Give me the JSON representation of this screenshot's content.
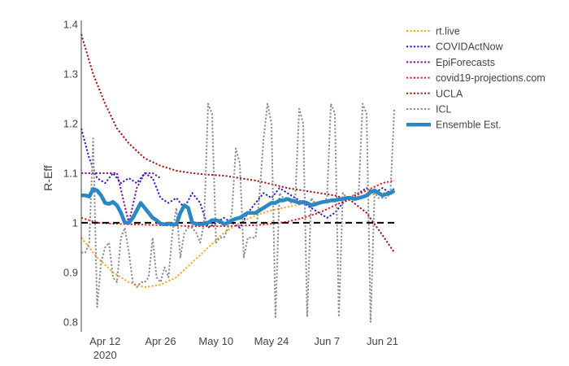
{
  "chart_data": {
    "type": "line",
    "ylabel": "R-Eff",
    "xlabel": "",
    "ylim": [
      0.78,
      1.4
    ],
    "xlim": [
      "2020-04-06",
      "2020-06-25"
    ],
    "yticks": [
      "0.8",
      "0.9",
      "1",
      "1.1",
      "1.2",
      "1.3",
      "1.4"
    ],
    "xticks": [
      {
        "date": "2020-04-12",
        "label": "Apr 12",
        "sublabel": "2020"
      },
      {
        "date": "2020-04-26",
        "label": "Apr 26",
        "sublabel": ""
      },
      {
        "date": "2020-05-10",
        "label": "May 10",
        "sublabel": ""
      },
      {
        "date": "2020-05-24",
        "label": "May 24",
        "sublabel": ""
      },
      {
        "date": "2020-06-07",
        "label": "Jun 7",
        "sublabel": ""
      },
      {
        "date": "2020-06-21",
        "label": "Jun 21",
        "sublabel": ""
      }
    ],
    "reference_line": {
      "y": 1.0,
      "style": "dashed",
      "color": "#000000"
    },
    "legend_position": "right",
    "grid": false,
    "series": [
      {
        "name": "rt.live",
        "color": "#f5a623",
        "style": "dotted",
        "x": [
          "2020-04-06",
          "2020-04-10",
          "2020-04-14",
          "2020-04-18",
          "2020-04-22",
          "2020-04-26",
          "2020-04-30",
          "2020-05-04",
          "2020-05-08",
          "2020-05-12",
          "2020-05-16",
          "2020-05-20",
          "2020-05-24",
          "2020-05-28",
          "2020-06-01",
          "2020-06-05",
          "2020-06-09",
          "2020-06-13",
          "2020-06-17",
          "2020-06-21",
          "2020-06-24"
        ],
        "y": [
          0.97,
          0.93,
          0.9,
          0.88,
          0.87,
          0.875,
          0.89,
          0.92,
          0.95,
          0.98,
          1.0,
          1.015,
          1.025,
          1.032,
          1.038,
          1.042,
          1.045,
          1.05,
          1.055,
          1.06,
          1.06
        ]
      },
      {
        "name": "COVIDActNow",
        "color": "#1f1fd1",
        "style": "dotted",
        "x": [
          "2020-04-06",
          "2020-04-08",
          "2020-04-10",
          "2020-04-12",
          "2020-04-14",
          "2020-04-16",
          "2020-04-18",
          "2020-04-20",
          "2020-04-22",
          "2020-04-24",
          "2020-04-26",
          "2020-04-28",
          "2020-04-30",
          "2020-05-02",
          "2020-05-04",
          "2020-05-06",
          "2020-05-08",
          "2020-05-10",
          "2020-05-12",
          "2020-05-14",
          "2020-05-16",
          "2020-05-18",
          "2020-05-20",
          "2020-05-22",
          "2020-05-24",
          "2020-05-26",
          "2020-05-28",
          "2020-05-30",
          "2020-06-01",
          "2020-06-03",
          "2020-06-05",
          "2020-06-07",
          "2020-06-09",
          "2020-06-11",
          "2020-06-13",
          "2020-06-15",
          "2020-06-17",
          "2020-06-19",
          "2020-06-21",
          "2020-06-23",
          "2020-06-24"
        ],
        "y": [
          1.19,
          1.13,
          1.09,
          1.08,
          1.1,
          1.08,
          1.09,
          1.08,
          1.1,
          1.09,
          1.05,
          1.04,
          1.05,
          1.03,
          1.06,
          1.04,
          0.99,
          1.0,
          1.01,
          1.0,
          0.99,
          1.02,
          1.04,
          1.06,
          1.05,
          1.07,
          1.06,
          1.05,
          1.04,
          1.03,
          1.02,
          1.01,
          1.02,
          1.04,
          1.05,
          1.06,
          1.07,
          1.06,
          1.07,
          1.06,
          1.07
        ]
      },
      {
        "name": "EpiForecasts",
        "color": "#7a0f8a",
        "style": "dotted",
        "x": [
          "2020-04-06",
          "2020-04-09",
          "2020-04-12",
          "2020-04-15",
          "2020-04-18",
          "2020-04-20",
          "2020-04-22",
          "2020-04-24",
          "2020-04-26"
        ],
        "y": [
          1.1,
          1.1,
          1.1,
          1.1,
          1.0,
          1.07,
          1.1,
          1.1,
          1.09
        ]
      },
      {
        "name": "covid19-projections.com",
        "color": "#e02020",
        "style": "dotted",
        "x": [
          "2020-04-06",
          "2020-04-10",
          "2020-04-14",
          "2020-04-18",
          "2020-04-22",
          "2020-04-26",
          "2020-04-30",
          "2020-05-04",
          "2020-05-08",
          "2020-05-12",
          "2020-05-16",
          "2020-05-20",
          "2020-05-24",
          "2020-05-28",
          "2020-06-01",
          "2020-06-05",
          "2020-06-09",
          "2020-06-13",
          "2020-06-17",
          "2020-06-21",
          "2020-06-24"
        ],
        "y": [
          1.01,
          1.0,
          0.998,
          0.997,
          0.996,
          0.995,
          0.994,
          0.993,
          0.993,
          0.993,
          0.994,
          0.995,
          0.998,
          1.002,
          1.01,
          1.02,
          1.035,
          1.05,
          1.065,
          1.08,
          1.085
        ]
      },
      {
        "name": "UCLA",
        "color": "#a01818",
        "style": "dotted",
        "x": [
          "2020-04-06",
          "2020-04-09",
          "2020-04-12",
          "2020-04-15",
          "2020-04-18",
          "2020-04-22",
          "2020-04-26",
          "2020-04-30",
          "2020-05-04",
          "2020-05-08",
          "2020-05-12",
          "2020-05-16",
          "2020-05-20",
          "2020-05-24",
          "2020-05-28",
          "2020-06-01",
          "2020-06-05",
          "2020-06-09",
          "2020-06-13",
          "2020-06-17",
          "2020-06-21",
          "2020-06-24"
        ],
        "y": [
          1.38,
          1.3,
          1.24,
          1.19,
          1.16,
          1.13,
          1.115,
          1.105,
          1.1,
          1.097,
          1.095,
          1.09,
          1.085,
          1.078,
          1.07,
          1.065,
          1.06,
          1.055,
          1.045,
          1.02,
          0.975,
          0.94
        ]
      },
      {
        "name": "ICL",
        "color": "#8c8c8c",
        "style": "dotted",
        "x": [
          "2020-04-06",
          "2020-04-07",
          "2020-04-08",
          "2020-04-09",
          "2020-04-10",
          "2020-04-11",
          "2020-04-12",
          "2020-04-13",
          "2020-04-14",
          "2020-04-15",
          "2020-04-16",
          "2020-04-17",
          "2020-04-18",
          "2020-04-19",
          "2020-04-20",
          "2020-04-21",
          "2020-04-22",
          "2020-04-23",
          "2020-04-24",
          "2020-04-25",
          "2020-04-26",
          "2020-04-27",
          "2020-04-28",
          "2020-04-29",
          "2020-04-30",
          "2020-05-01",
          "2020-05-02",
          "2020-05-03",
          "2020-05-04",
          "2020-05-05",
          "2020-05-06",
          "2020-05-07",
          "2020-05-08",
          "2020-05-09",
          "2020-05-10",
          "2020-05-11",
          "2020-05-12",
          "2020-05-13",
          "2020-05-14",
          "2020-05-15",
          "2020-05-16",
          "2020-05-17",
          "2020-05-18",
          "2020-05-19",
          "2020-05-20",
          "2020-05-21",
          "2020-05-22",
          "2020-05-23",
          "2020-05-24",
          "2020-05-25",
          "2020-05-26",
          "2020-05-27",
          "2020-05-28",
          "2020-05-29",
          "2020-05-30",
          "2020-05-31",
          "2020-06-01",
          "2020-06-02",
          "2020-06-03",
          "2020-06-04",
          "2020-06-05",
          "2020-06-06",
          "2020-06-07",
          "2020-06-08",
          "2020-06-09",
          "2020-06-10",
          "2020-06-11",
          "2020-06-12",
          "2020-06-13",
          "2020-06-14",
          "2020-06-15",
          "2020-06-16",
          "2020-06-17",
          "2020-06-18",
          "2020-06-19",
          "2020-06-20",
          "2020-06-21",
          "2020-06-22",
          "2020-06-23",
          "2020-06-24"
        ],
        "y": [
          0.94,
          0.94,
          0.96,
          1.17,
          0.83,
          0.92,
          0.95,
          0.96,
          0.89,
          0.88,
          0.97,
          0.99,
          0.94,
          0.88,
          0.87,
          0.88,
          0.88,
          0.89,
          0.97,
          0.89,
          0.88,
          0.91,
          0.89,
          0.98,
          1.03,
          0.93,
          0.98,
          0.99,
          0.99,
          0.98,
          0.96,
          1.0,
          1.24,
          1.22,
          0.96,
          0.97,
          0.97,
          0.99,
          1.02,
          1.15,
          1.12,
          0.93,
          0.97,
          0.97,
          0.97,
          1.06,
          1.17,
          1.24,
          1.2,
          0.81,
          1.06,
          1.05,
          1.05,
          1.04,
          1.05,
          1.23,
          1.2,
          0.81,
          1.05,
          1.04,
          1.04,
          1.04,
          1.05,
          1.24,
          1.22,
          0.81,
          1.06,
          1.05,
          1.05,
          1.06,
          1.06,
          1.24,
          1.22,
          0.8,
          1.06,
          1.05,
          1.05,
          1.05,
          1.06,
          1.23
        ]
      },
      {
        "name": "Ensemble Est.",
        "color": "#2b88c2",
        "style": "solid",
        "x": [
          "2020-04-06",
          "2020-04-07",
          "2020-04-08",
          "2020-04-09",
          "2020-04-10",
          "2020-04-11",
          "2020-04-12",
          "2020-04-13",
          "2020-04-14",
          "2020-04-15",
          "2020-04-16",
          "2020-04-17",
          "2020-04-18",
          "2020-04-19",
          "2020-04-20",
          "2020-04-21",
          "2020-04-22",
          "2020-04-23",
          "2020-04-24",
          "2020-04-25",
          "2020-04-26",
          "2020-04-27",
          "2020-04-28",
          "2020-04-29",
          "2020-04-30",
          "2020-05-01",
          "2020-05-02",
          "2020-05-03",
          "2020-05-04",
          "2020-05-05",
          "2020-05-06",
          "2020-05-07",
          "2020-05-08",
          "2020-05-09",
          "2020-05-10",
          "2020-05-11",
          "2020-05-12",
          "2020-05-13",
          "2020-05-14",
          "2020-05-15",
          "2020-05-16",
          "2020-05-17",
          "2020-05-18",
          "2020-05-19",
          "2020-05-20",
          "2020-05-21",
          "2020-05-22",
          "2020-05-23",
          "2020-05-24",
          "2020-05-25",
          "2020-05-26",
          "2020-05-27",
          "2020-05-28",
          "2020-05-29",
          "2020-05-30",
          "2020-05-31",
          "2020-06-01",
          "2020-06-02",
          "2020-06-03",
          "2020-06-04",
          "2020-06-05",
          "2020-06-06",
          "2020-06-07",
          "2020-06-08",
          "2020-06-09",
          "2020-06-10",
          "2020-06-11",
          "2020-06-12",
          "2020-06-13",
          "2020-06-14",
          "2020-06-15",
          "2020-06-16",
          "2020-06-17",
          "2020-06-18",
          "2020-06-19",
          "2020-06-20",
          "2020-06-21",
          "2020-06-22",
          "2020-06-23",
          "2020-06-24"
        ],
        "y": [
          1.055,
          1.055,
          1.053,
          1.068,
          1.065,
          1.055,
          1.04,
          1.038,
          1.042,
          1.035,
          1.02,
          1.0,
          1.0,
          1.01,
          1.025,
          1.04,
          1.03,
          1.02,
          1.01,
          1.005,
          0.998,
          0.997,
          0.998,
          0.997,
          0.997,
          1.02,
          1.035,
          1.03,
          1.0,
          0.998,
          0.997,
          0.998,
          1.0,
          1.005,
          1.005,
          1.003,
          0.997,
          1.0,
          1.005,
          1.008,
          1.01,
          1.015,
          1.02,
          1.02,
          1.02,
          1.025,
          1.03,
          1.035,
          1.04,
          1.04,
          1.045,
          1.045,
          1.048,
          1.045,
          1.043,
          1.04,
          1.042,
          1.04,
          1.035,
          1.037,
          1.04,
          1.042,
          1.043,
          1.045,
          1.045,
          1.047,
          1.048,
          1.05,
          1.05,
          1.048,
          1.05,
          1.052,
          1.055,
          1.062,
          1.065,
          1.06,
          1.055,
          1.058,
          1.06,
          1.065
        ]
      }
    ]
  }
}
